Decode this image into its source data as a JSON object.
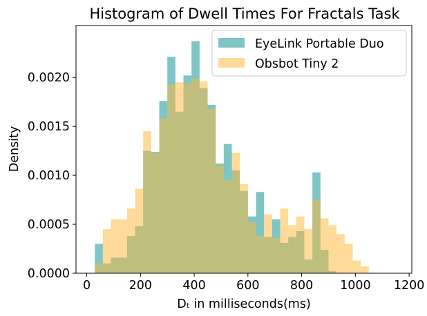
{
  "colors": {
    "series_a": "#008c8c",
    "series_b": "#ffb833"
  },
  "chart_data": {
    "type": "histogram",
    "title": "Histogram of Dwell Times For Fractals Task",
    "xlabel": "Dₜ in milliseconds(ms)",
    "ylabel": "Density",
    "xlim": [
      -40,
      1210
    ],
    "ylim": [
      0,
      0.00253
    ],
    "xticks": [
      0,
      200,
      400,
      600,
      800,
      1000,
      1200
    ],
    "yticks": [
      0.0,
      0.0005,
      0.001,
      0.0015,
      0.002
    ],
    "xtick_labels": [
      "0",
      "200",
      "400",
      "600",
      "800",
      "1000",
      "1200"
    ],
    "ytick_labels": [
      "0.0000",
      "0.0005",
      "0.0010",
      "0.0015",
      "0.0020"
    ],
    "bin_start": 30,
    "bin_width": 30,
    "legend": {
      "placement": "top-right"
    },
    "grid": false,
    "series": [
      {
        "name": "EyeLink Portable Duo",
        "alpha": 0.5,
        "values": [
          0.0003,
          0.0001,
          0.00016,
          0.00016,
          0.00038,
          0.00048,
          0.00125,
          0.00124,
          0.00176,
          0.00221,
          0.00165,
          0.00202,
          0.00237,
          0.00189,
          0.00172,
          0.00112,
          0.00132,
          0.00105,
          0.00084,
          0.00058,
          0.00083,
          0.00037,
          0.00055,
          0.00031,
          0.00037,
          0.00043,
          0.00014,
          0.00103,
          0.00024,
          2e-05,
          0.0
        ]
      },
      {
        "name": "Obsbot Tiny 2",
        "alpha": 0.5,
        "values": [
          0.0001,
          0.00045,
          0.00055,
          0.00055,
          0.00066,
          0.00086,
          0.00145,
          0.00123,
          0.00158,
          0.00193,
          0.00195,
          0.00194,
          0.00199,
          0.00196,
          0.00168,
          0.0011,
          0.00095,
          0.00123,
          0.00091,
          0.00052,
          0.00038,
          0.0006,
          0.00036,
          0.00066,
          0.00049,
          0.00058,
          0.00045,
          0.00075,
          0.00056,
          0.00049,
          0.0004,
          0.0003,
          0.00013,
          7e-05
        ]
      }
    ]
  }
}
